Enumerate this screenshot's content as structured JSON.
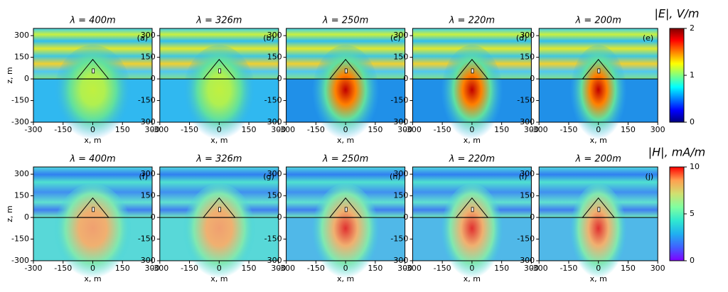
{
  "chart_data": {
    "type": "heatmap",
    "xlabel": "x, m",
    "ylabel": "z, m",
    "xlim": [
      -300,
      300
    ],
    "ylim": [
      -300,
      350
    ],
    "xticks": [
      -300,
      -150,
      0,
      150,
      300
    ],
    "yticks": [
      -300,
      -150,
      0,
      150,
      300
    ],
    "rows": [
      {
        "colorbar": {
          "label": "|E|, V/m",
          "lim": [
            0,
            2
          ],
          "ticks": [
            0,
            1,
            2
          ],
          "colors": [
            "#00007f",
            "#0000ff",
            "#0080ff",
            "#00ffff",
            "#80ff80",
            "#ffff00",
            "#ff8000",
            "#ff0000",
            "#7f0000"
          ]
        },
        "panels": [
          {
            "title": "λ = 400m",
            "tag": "(a)"
          },
          {
            "title": "λ = 326m",
            "tag": "(b)"
          },
          {
            "title": "λ = 250m",
            "tag": "(c)"
          },
          {
            "title": "λ = 220m",
            "tag": "(d)"
          },
          {
            "title": "λ = 200m",
            "tag": "(e)"
          }
        ]
      },
      {
        "colorbar": {
          "label": "|H|, mA/m",
          "lim": [
            0,
            10
          ],
          "ticks": [
            0,
            5,
            10
          ],
          "colors": [
            "#8000ff",
            "#4060ff",
            "#20b0f0",
            "#30e8d0",
            "#80ffa0",
            "#d0e070",
            "#ffa050",
            "#ff0000"
          ]
        },
        "panels": [
          {
            "title": "λ = 400m",
            "tag": "(f)"
          },
          {
            "title": "λ = 326m",
            "tag": "(g)"
          },
          {
            "title": "λ = 250m",
            "tag": "(h)"
          },
          {
            "title": "λ = 220m",
            "tag": "(i)"
          },
          {
            "title": "λ = 200m",
            "tag": "(j)"
          }
        ]
      }
    ]
  }
}
